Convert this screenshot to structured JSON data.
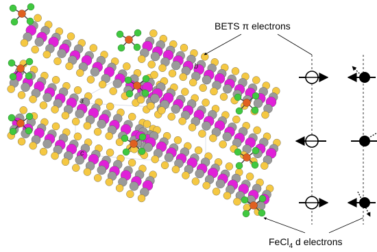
{
  "labels": {
    "bets": "BETS π electrons",
    "fecl_prefix": "FeCl",
    "fecl_sub": "4",
    "fecl_suffix": " d electrons"
  },
  "axes": {
    "a": "a",
    "b": "b",
    "c": "c"
  },
  "colors": {
    "sulfur": "#f5c842",
    "selenium": "#e020d8",
    "carbon": "#9a9a9a",
    "iron": "#e06020",
    "chlorine": "#40c840",
    "bond": "#444444"
  },
  "spins": {
    "pi_symbol": "open-circle-with-cross",
    "d_symbol": "filled-circle"
  }
}
